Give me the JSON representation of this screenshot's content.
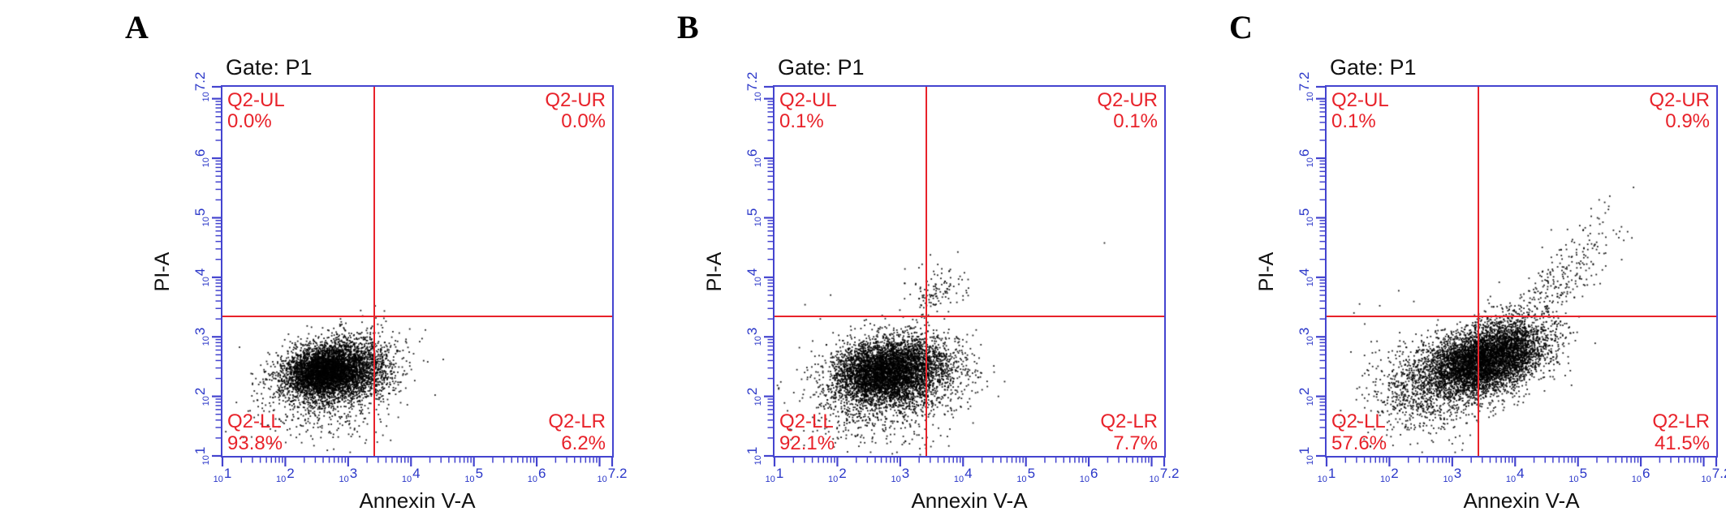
{
  "colors": {
    "axis_blue": "#4444cf",
    "tick_text_blue": "#2a36c8",
    "quadrant_red": "#e8222a",
    "text_black": "#111111",
    "point_color": "#000000",
    "background": "#ffffff"
  },
  "panels": [
    {
      "letter": "A",
      "gate_label": "Gate: P1",
      "x_axis_label": "Annexin V-A",
      "y_axis_label": "PI-A",
      "quadrants": [
        {
          "name": "Q2-UL",
          "value": "0.0%"
        },
        {
          "name": "Q2-UR",
          "value": "0.0%"
        },
        {
          "name": "Q2-LL",
          "value": "93.8%"
        },
        {
          "name": "Q2-LR",
          "value": "6.2%"
        }
      ]
    },
    {
      "letter": "B",
      "gate_label": "Gate: P1",
      "x_axis_label": "Annexin V-A",
      "y_axis_label": "PI-A",
      "quadrants": [
        {
          "name": "Q2-UL",
          "value": "0.1%"
        },
        {
          "name": "Q2-UR",
          "value": "0.1%"
        },
        {
          "name": "Q2-LL",
          "value": "92.1%"
        },
        {
          "name": "Q2-LR",
          "value": "7.7%"
        }
      ]
    },
    {
      "letter": "C",
      "gate_label": "Gate: P1",
      "x_axis_label": "Annexin V-A",
      "y_axis_label": "PI-A",
      "quadrants": [
        {
          "name": "Q2-UL",
          "value": "0.1%"
        },
        {
          "name": "Q2-UR",
          "value": "0.9%"
        },
        {
          "name": "Q2-LL",
          "value": "57.6%"
        },
        {
          "name": "Q2-LR",
          "value": "41.5%"
        }
      ]
    }
  ],
  "chart_data": [
    {
      "type": "scatter",
      "title": "Gate: P1",
      "xlabel": "Annexin V-A",
      "ylabel": "PI-A",
      "x_scale": "log10",
      "y_scale": "log10",
      "xlim_log": [
        1,
        7.2
      ],
      "ylim_log": [
        1,
        7.2
      ],
      "x_ticks_log": [
        1,
        2,
        3,
        4,
        5,
        6,
        7.2
      ],
      "y_ticks_log": [
        1,
        2,
        3,
        4,
        5,
        6,
        7.2
      ],
      "gate_x_log": 3.42,
      "gate_y_log": 3.35,
      "quadrant_stats": {
        "Q2-UL": 0.0,
        "Q2-UR": 0.0,
        "Q2-LL": 93.8,
        "Q2-LR": 6.2
      },
      "seed": 11,
      "clusters": [
        {
          "cx": 2.6,
          "cy": 2.4,
          "sx": 0.33,
          "sy": 0.22,
          "n": 3800,
          "rho": 0.15
        },
        {
          "cx": 2.95,
          "cy": 2.45,
          "sx": 0.38,
          "sy": 0.28,
          "n": 1600,
          "rho": 0.1
        },
        {
          "cx": 3.3,
          "cy": 2.5,
          "sx": 0.3,
          "sy": 0.3,
          "n": 300,
          "rho": 0.1
        },
        {
          "cx": 2.5,
          "cy": 1.8,
          "sx": 0.55,
          "sy": 0.35,
          "n": 350,
          "rho": 0
        },
        {
          "cx": 3.35,
          "cy": 3.5,
          "sx": 0.25,
          "sy": 0.12,
          "n": 3,
          "rho": 0
        }
      ]
    },
    {
      "type": "scatter",
      "title": "Gate: P1",
      "xlabel": "Annexin V-A",
      "ylabel": "PI-A",
      "x_scale": "log10",
      "y_scale": "log10",
      "xlim_log": [
        1,
        7.2
      ],
      "ylim_log": [
        1,
        7.2
      ],
      "x_ticks_log": [
        1,
        2,
        3,
        4,
        5,
        6,
        7.2
      ],
      "y_ticks_log": [
        1,
        2,
        3,
        4,
        5,
        6,
        7.2
      ],
      "gate_x_log": 3.42,
      "gate_y_log": 3.35,
      "quadrant_stats": {
        "Q2-UL": 0.1,
        "Q2-UR": 0.1,
        "Q2-LL": 92.1,
        "Q2-LR": 7.7
      },
      "seed": 22,
      "clusters": [
        {
          "cx": 2.7,
          "cy": 2.4,
          "sx": 0.4,
          "sy": 0.26,
          "n": 3800,
          "rho": 0.1
        },
        {
          "cx": 3.15,
          "cy": 2.45,
          "sx": 0.42,
          "sy": 0.3,
          "n": 1800,
          "rho": 0.1
        },
        {
          "cx": 2.7,
          "cy": 1.8,
          "sx": 0.6,
          "sy": 0.35,
          "n": 500,
          "rho": 0
        },
        {
          "cx": 3.6,
          "cy": 3.8,
          "sx": 0.25,
          "sy": 0.22,
          "n": 120,
          "rho": 0.2
        },
        {
          "cx": 6.25,
          "cy": 4.45,
          "sx": 0.05,
          "sy": 0.05,
          "n": 1,
          "rho": 0
        },
        {
          "cx": 1.6,
          "cy": 3.6,
          "sx": 0.2,
          "sy": 0.2,
          "n": 3,
          "rho": 0
        }
      ]
    },
    {
      "type": "scatter",
      "title": "Gate: P1",
      "xlabel": "Annexin V-A",
      "ylabel": "PI-A",
      "x_scale": "log10",
      "y_scale": "log10",
      "xlim_log": [
        1,
        7.2
      ],
      "ylim_log": [
        1,
        7.2
      ],
      "x_ticks_log": [
        1,
        2,
        3,
        4,
        5,
        6,
        7.2
      ],
      "y_ticks_log": [
        1,
        2,
        3,
        4,
        5,
        6,
        7.2
      ],
      "gate_x_log": 3.42,
      "gate_y_log": 3.35,
      "quadrant_stats": {
        "Q2-UL": 0.1,
        "Q2-UR": 0.9,
        "Q2-LL": 57.6,
        "Q2-LR": 41.5
      },
      "seed": 33,
      "clusters": [
        {
          "cx": 3.35,
          "cy": 2.55,
          "sx": 0.42,
          "sy": 0.27,
          "n": 3600,
          "rho": 0.2
        },
        {
          "cx": 3.85,
          "cy": 2.75,
          "sx": 0.38,
          "sy": 0.3,
          "n": 2200,
          "rho": 0.3
        },
        {
          "cx": 2.6,
          "cy": 2.1,
          "sx": 0.5,
          "sy": 0.35,
          "n": 900,
          "rho": 0
        },
        {
          "cx": 4.5,
          "cy": 3.7,
          "sx": 0.45,
          "sy": 0.45,
          "n": 260,
          "rho": 0.75
        },
        {
          "cx": 5.1,
          "cy": 4.6,
          "sx": 0.35,
          "sy": 0.4,
          "n": 60,
          "rho": 0.6
        },
        {
          "cx": 1.8,
          "cy": 3.6,
          "sx": 0.3,
          "sy": 0.2,
          "n": 5,
          "rho": 0
        }
      ]
    }
  ]
}
